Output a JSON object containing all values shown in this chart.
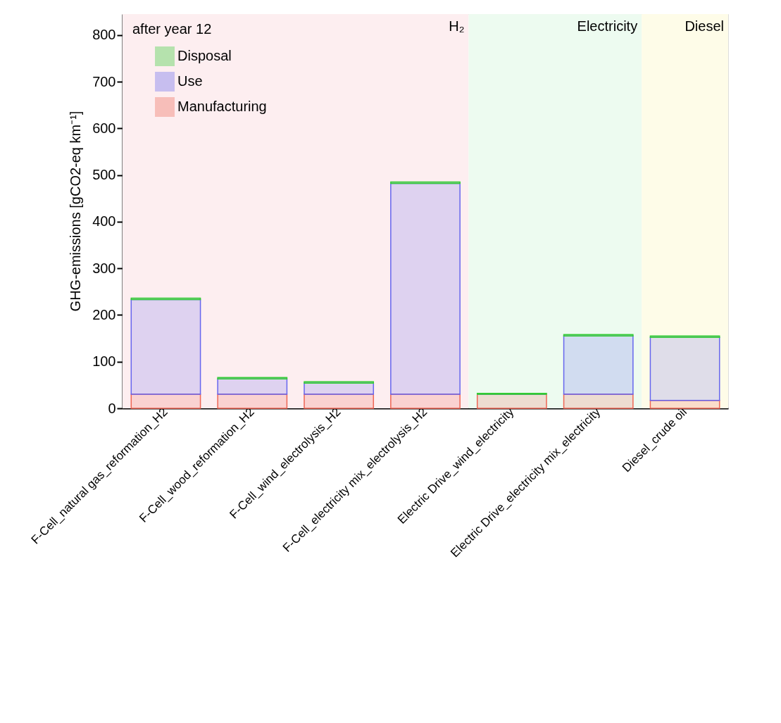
{
  "chart_data": {
    "type": "bar",
    "stacked": true,
    "ylabel": "GHG-emissions [gCO2-eq km⁻¹]",
    "categories": [
      "F-Cell_natural gas_reformation_H2",
      "F-Cell_wood_reformation_H2",
      "F-Cell_wind_electrolysis_H2",
      "F-Cell_electricity mix_electrolysis_H2",
      "Electric Drive_wind_electricity",
      "Electric Drive_electricity mix_electricity",
      "Diesel_crude oil"
    ],
    "series": [
      {
        "name": "Manufacturing",
        "color": "#ee6655",
        "values": [
          30,
          30,
          30,
          30,
          30,
          30,
          17
        ]
      },
      {
        "name": "Use",
        "color": "#6666ee",
        "values": [
          203,
          33,
          24,
          452,
          0,
          125,
          135
        ]
      },
      {
        "name": "Disposal",
        "color": "#33cc33",
        "values": [
          3,
          3,
          3,
          3,
          2,
          3,
          3
        ]
      }
    ],
    "ylim": [
      0,
      845
    ],
    "yticks": [
      0,
      100,
      200,
      300,
      400,
      500,
      600,
      700,
      800
    ],
    "grid": false,
    "legend": "top left",
    "bands": [
      {
        "axis": "x",
        "from": "F-Cell_natural gas_reformation_H2",
        "to": "F-Cell_electricity mix_electrolysis_H2",
        "label": "H₂",
        "color": "#fdeef0"
      },
      {
        "axis": "x",
        "from": "Electric Drive_wind_electricity",
        "to": "Electric Drive_electricity mix_electricity",
        "label": "Electricity",
        "color": "#edfbf0"
      },
      {
        "axis": "x",
        "from": "Diesel_crude oil",
        "to": "Diesel_crude oil",
        "label": "Diesel",
        "color": "#fefce8"
      }
    ],
    "annotations": [
      "after year 12"
    ]
  }
}
